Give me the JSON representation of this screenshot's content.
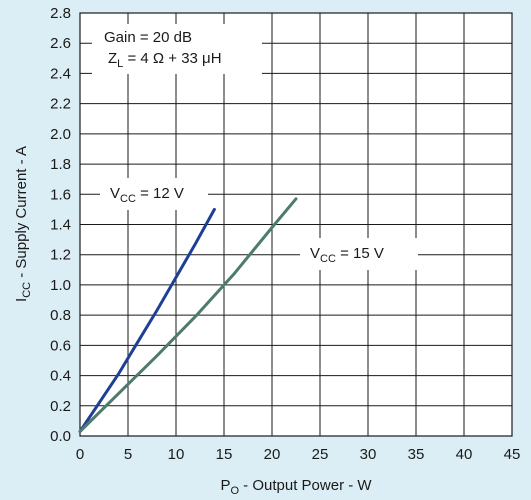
{
  "chart_data": {
    "type": "line",
    "xlabel": {
      "main": "P",
      "sub": "O",
      "rest": " - Output Power - W"
    },
    "ylabel": {
      "main": "I",
      "sub": "CC",
      "rest": " - Supply Current - A"
    },
    "xlim": [
      0,
      45
    ],
    "ylim": [
      0,
      2.8
    ],
    "xticks": [
      "0",
      "5",
      "10",
      "15",
      "20",
      "25",
      "30",
      "35",
      "40",
      "45"
    ],
    "yticks": [
      "0.0",
      "0.2",
      "0.4",
      "0.6",
      "0.8",
      "1.0",
      "1.2",
      "1.4",
      "1.6",
      "1.8",
      "2.0",
      "2.2",
      "2.4",
      "2.6",
      "2.8"
    ],
    "grid": true,
    "series": [
      {
        "label": {
          "main": "V",
          "sub": "CC",
          "rest": " = 12 V"
        },
        "color": "#1f3f96",
        "x": [
          0,
          2,
          4,
          6,
          8,
          10,
          12,
          14
        ],
        "y": [
          0.03,
          0.22,
          0.41,
          0.62,
          0.83,
          1.05,
          1.27,
          1.5
        ]
      },
      {
        "label": {
          "main": "V",
          "sub": "CC",
          "rest": " = 15 V"
        },
        "color": "#4f7a6e",
        "x": [
          0,
          4,
          8,
          12,
          16,
          20,
          22.5
        ],
        "y": [
          0.03,
          0.28,
          0.53,
          0.79,
          1.07,
          1.38,
          1.57
        ]
      }
    ],
    "annotation": {
      "line1": "Gain = 20 dB",
      "line2": {
        "main": "Z",
        "sub": "L",
        "rest": " = 4 Ω + 33 μH"
      }
    }
  }
}
